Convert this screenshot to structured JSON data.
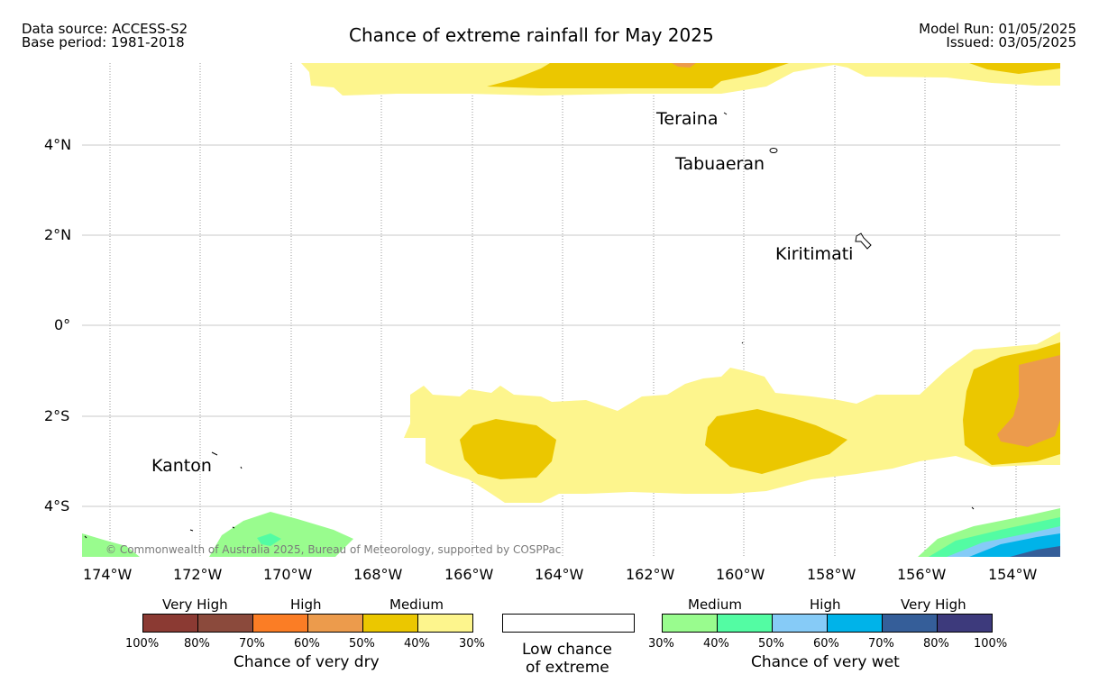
{
  "header": {
    "data_source": "Data source: ACCESS-S2",
    "base_period": "Base period: 1981-2018",
    "title": "Chance of extreme rainfall for May 2025",
    "model_run": "Model Run: 01/05/2025",
    "issued": "Issued: 03/05/2025"
  },
  "map": {
    "lat_labels": [
      "4°N",
      "2°N",
      "0°",
      "2°S",
      "4°S"
    ],
    "lon_labels": [
      "174°W",
      "172°W",
      "170°W",
      "168°W",
      "166°W",
      "164°W",
      "162°W",
      "160°W",
      "158°W",
      "156°W",
      "154°W"
    ],
    "places": {
      "teraina": "Teraina",
      "tabuaeran": "Tabuaeran",
      "kiritimati": "Kiritimati",
      "kanton": "Kanton"
    },
    "copyright": "© Commonwealth of Australia 2025, Bureau of Meteorology, supported by COSPPac"
  },
  "legend": {
    "dry": {
      "categories": [
        "Very High",
        "High",
        "Medium"
      ],
      "colors": [
        "#8b3a33",
        "#8b4a3c",
        "#fb7d25",
        "#ec9b4c",
        "#ebc700",
        "#fdf58d"
      ],
      "percent_labels": [
        "100%",
        "80%",
        "70%",
        "60%",
        "50%",
        "40%",
        "30%"
      ],
      "caption": "Chance of very dry"
    },
    "neutral": {
      "line1": "Low chance",
      "line2": "of extreme"
    },
    "wet": {
      "categories": [
        "Medium",
        "High",
        "Very High"
      ],
      "colors": [
        "#99fc8e",
        "#53fca3",
        "#86cbf7",
        "#00b3e9",
        "#355e99",
        "#3d3a7c"
      ],
      "percent_labels": [
        "30%",
        "40%",
        "50%",
        "60%",
        "70%",
        "80%",
        "100%"
      ],
      "caption": "Chance of very wet"
    }
  }
}
